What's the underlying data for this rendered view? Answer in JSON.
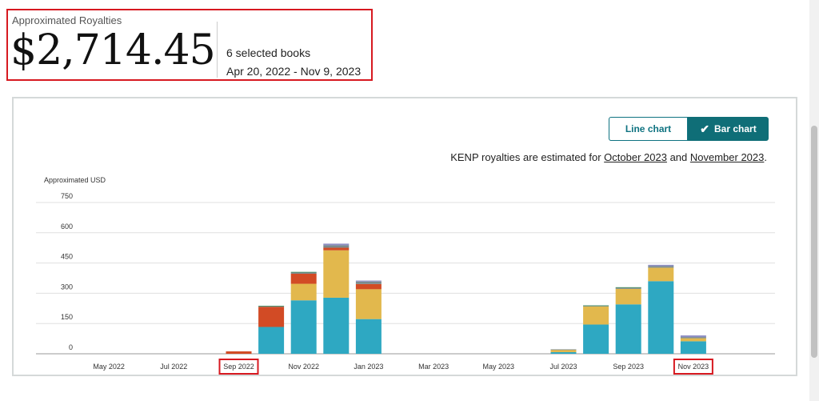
{
  "summary": {
    "label": "Approximated Royalties",
    "amount": "$2,714.45",
    "books": "6 selected books",
    "date_range": "Apr 20, 2022 - Nov 9, 2023"
  },
  "toggle": {
    "line_label": "Line chart",
    "bar_label": "Bar chart",
    "selected": "bar"
  },
  "note": {
    "prefix": "KENP royalties are estimated for ",
    "link1": "October 2023",
    "middle": " and ",
    "link2": "November 2023",
    "suffix": "."
  },
  "colors": {
    "teal": "#2ea8c2",
    "gold": "#e2b84d",
    "red": "#d24b25",
    "gray": "#7a8a8e",
    "lilac": "#8f8fc4",
    "green": "#3d8a5a",
    "highlight": "#d71920"
  },
  "chart_data": {
    "type": "bar",
    "stacked": true,
    "ylabel": "Approximated USD",
    "ylim": [
      0,
      750
    ],
    "yticks": [
      0,
      150,
      300,
      450,
      600,
      750
    ],
    "grid": true,
    "categories": [
      "Apr 2022",
      "May 2022",
      "Jun 2022",
      "Jul 2022",
      "Aug 2022",
      "Sep 2022",
      "Oct 2022",
      "Nov 2022",
      "Dec 2022",
      "Jan 2023",
      "Feb 2023",
      "Mar 2023",
      "Apr 2023",
      "May 2023",
      "Jun 2023",
      "Jul 2023",
      "Aug 2023",
      "Sep 2023",
      "Oct 2023",
      "Nov 2023"
    ],
    "xtick_labels": [
      {
        "index": 1,
        "label": "May 2022"
      },
      {
        "index": 3,
        "label": "Jul 2022"
      },
      {
        "index": 5,
        "label": "Sep 2022",
        "highlight": true
      },
      {
        "index": 7,
        "label": "Nov 2022"
      },
      {
        "index": 9,
        "label": "Jan 2023"
      },
      {
        "index": 11,
        "label": "Mar 2023"
      },
      {
        "index": 13,
        "label": "May 2023"
      },
      {
        "index": 15,
        "label": "Jul 2023"
      },
      {
        "index": 17,
        "label": "Sep 2023"
      },
      {
        "index": 19,
        "label": "Nov 2023",
        "highlight": true
      }
    ],
    "series": [
      {
        "color": "teal",
        "values": [
          0,
          0,
          0,
          0,
          0,
          0,
          133,
          265,
          278,
          172,
          0,
          0,
          0,
          0,
          0,
          8,
          145,
          245,
          360,
          62
        ]
      },
      {
        "color": "gold",
        "values": [
          0,
          0,
          0,
          0,
          0,
          0,
          0,
          82,
          235,
          148,
          0,
          0,
          0,
          0,
          0,
          12,
          90,
          77,
          67,
          15
        ]
      },
      {
        "color": "red",
        "values": [
          0,
          0,
          0,
          0,
          0,
          12,
          100,
          50,
          13,
          26,
          0,
          0,
          0,
          0,
          0,
          0,
          0,
          0,
          0,
          0
        ]
      },
      {
        "color": "gray",
        "values": [
          0,
          0,
          0,
          0,
          0,
          0,
          3,
          6,
          12,
          12,
          0,
          0,
          0,
          0,
          0,
          2,
          3,
          5,
          8,
          6
        ]
      },
      {
        "color": "lilac",
        "values": [
          0,
          0,
          0,
          0,
          0,
          0,
          0,
          0,
          8,
          5,
          0,
          0,
          0,
          0,
          0,
          0,
          0,
          0,
          6,
          8
        ]
      },
      {
        "color": "green",
        "values": [
          0,
          0,
          0,
          0,
          0,
          0,
          2,
          3,
          0,
          0,
          0,
          0,
          0,
          0,
          0,
          0,
          2,
          3,
          0,
          0
        ]
      }
    ]
  }
}
